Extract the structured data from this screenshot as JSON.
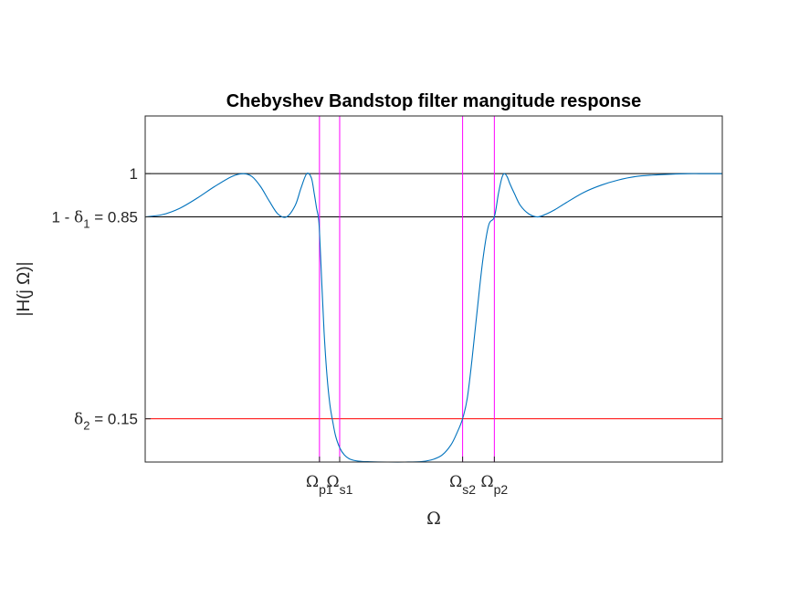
{
  "chart_data": {
    "type": "line",
    "title": "Chebyshev Bandstop filter mangitude response",
    "xlabel": "Ω",
    "ylabel": "|H(j Ω)|",
    "xlim": [
      0,
      1
    ],
    "ylim": [
      0,
      1.2
    ],
    "grid": false,
    "y_ticks": [
      {
        "value": 0.15,
        "pre": "",
        "sym": "δ",
        "sub": "2",
        "post": " = 0.15"
      },
      {
        "value": 0.85,
        "pre": "1 - ",
        "sym": "δ",
        "sub": "1",
        "post": " = 0.85"
      },
      {
        "value": 1,
        "pre": "",
        "sym": "",
        "sub": "",
        "post": "1"
      }
    ],
    "x_ticks": [
      {
        "value": 0.302,
        "sym": "Ω",
        "sub": "p1"
      },
      {
        "value": 0.337,
        "sym": "Ω",
        "sub": "s1"
      },
      {
        "value": 0.55,
        "sym": "Ω",
        "sub": "s2"
      },
      {
        "value": 0.605,
        "sym": "Ω",
        "sub": "p2"
      }
    ],
    "reference_lines": [
      {
        "axis": "y",
        "value": 1,
        "color": "#000000"
      },
      {
        "axis": "y",
        "value": 0.85,
        "color": "#000000"
      },
      {
        "axis": "y",
        "value": 0.15,
        "color": "#ff0000"
      },
      {
        "axis": "x",
        "value": 0.302,
        "color": "#ff00ff"
      },
      {
        "axis": "x",
        "value": 0.337,
        "color": "#ff00ff"
      },
      {
        "axis": "x",
        "value": 0.55,
        "color": "#ff00ff"
      },
      {
        "axis": "x",
        "value": 0.605,
        "color": "#ff00ff"
      }
    ],
    "series": [
      {
        "color": "#0072bd",
        "x": [
          0,
          0.03,
          0.06,
          0.09,
          0.12,
          0.15,
          0.17,
          0.185,
          0.2,
          0.215,
          0.23,
          0.245,
          0.26,
          0.27,
          0.28,
          0.288,
          0.293,
          0.297,
          0.3,
          0.302,
          0.306,
          0.31,
          0.315,
          0.32,
          0.325,
          0.33,
          0.337,
          0.345,
          0.355,
          0.37,
          0.39,
          0.42,
          0.45,
          0.48,
          0.5,
          0.515,
          0.53,
          0.54,
          0.55,
          0.558,
          0.566,
          0.575,
          0.585,
          0.595,
          0.605,
          0.612,
          0.618,
          0.622,
          0.627,
          0.632,
          0.64,
          0.65,
          0.665,
          0.68,
          0.695,
          0.71,
          0.73,
          0.76,
          0.79,
          0.82,
          0.85,
          0.88,
          0.91,
          0.94,
          0.97,
          1
        ],
        "y": [
          0.85,
          0.858,
          0.88,
          0.915,
          0.955,
          0.99,
          1.0,
          0.99,
          0.955,
          0.905,
          0.86,
          0.85,
          0.89,
          0.95,
          1.0,
          0.985,
          0.93,
          0.88,
          0.85,
          0.8,
          0.62,
          0.45,
          0.3,
          0.2,
          0.14,
          0.09,
          0.05,
          0.025,
          0.01,
          0.003,
          0.001,
          0.0,
          0.0,
          0.002,
          0.01,
          0.025,
          0.06,
          0.1,
          0.15,
          0.22,
          0.35,
          0.52,
          0.7,
          0.82,
          0.85,
          0.93,
          0.985,
          1.0,
          0.99,
          0.965,
          0.93,
          0.89,
          0.86,
          0.85,
          0.86,
          0.875,
          0.9,
          0.935,
          0.96,
          0.978,
          0.99,
          0.995,
          0.998,
          1.0,
          1.0,
          1.0
        ]
      }
    ]
  }
}
